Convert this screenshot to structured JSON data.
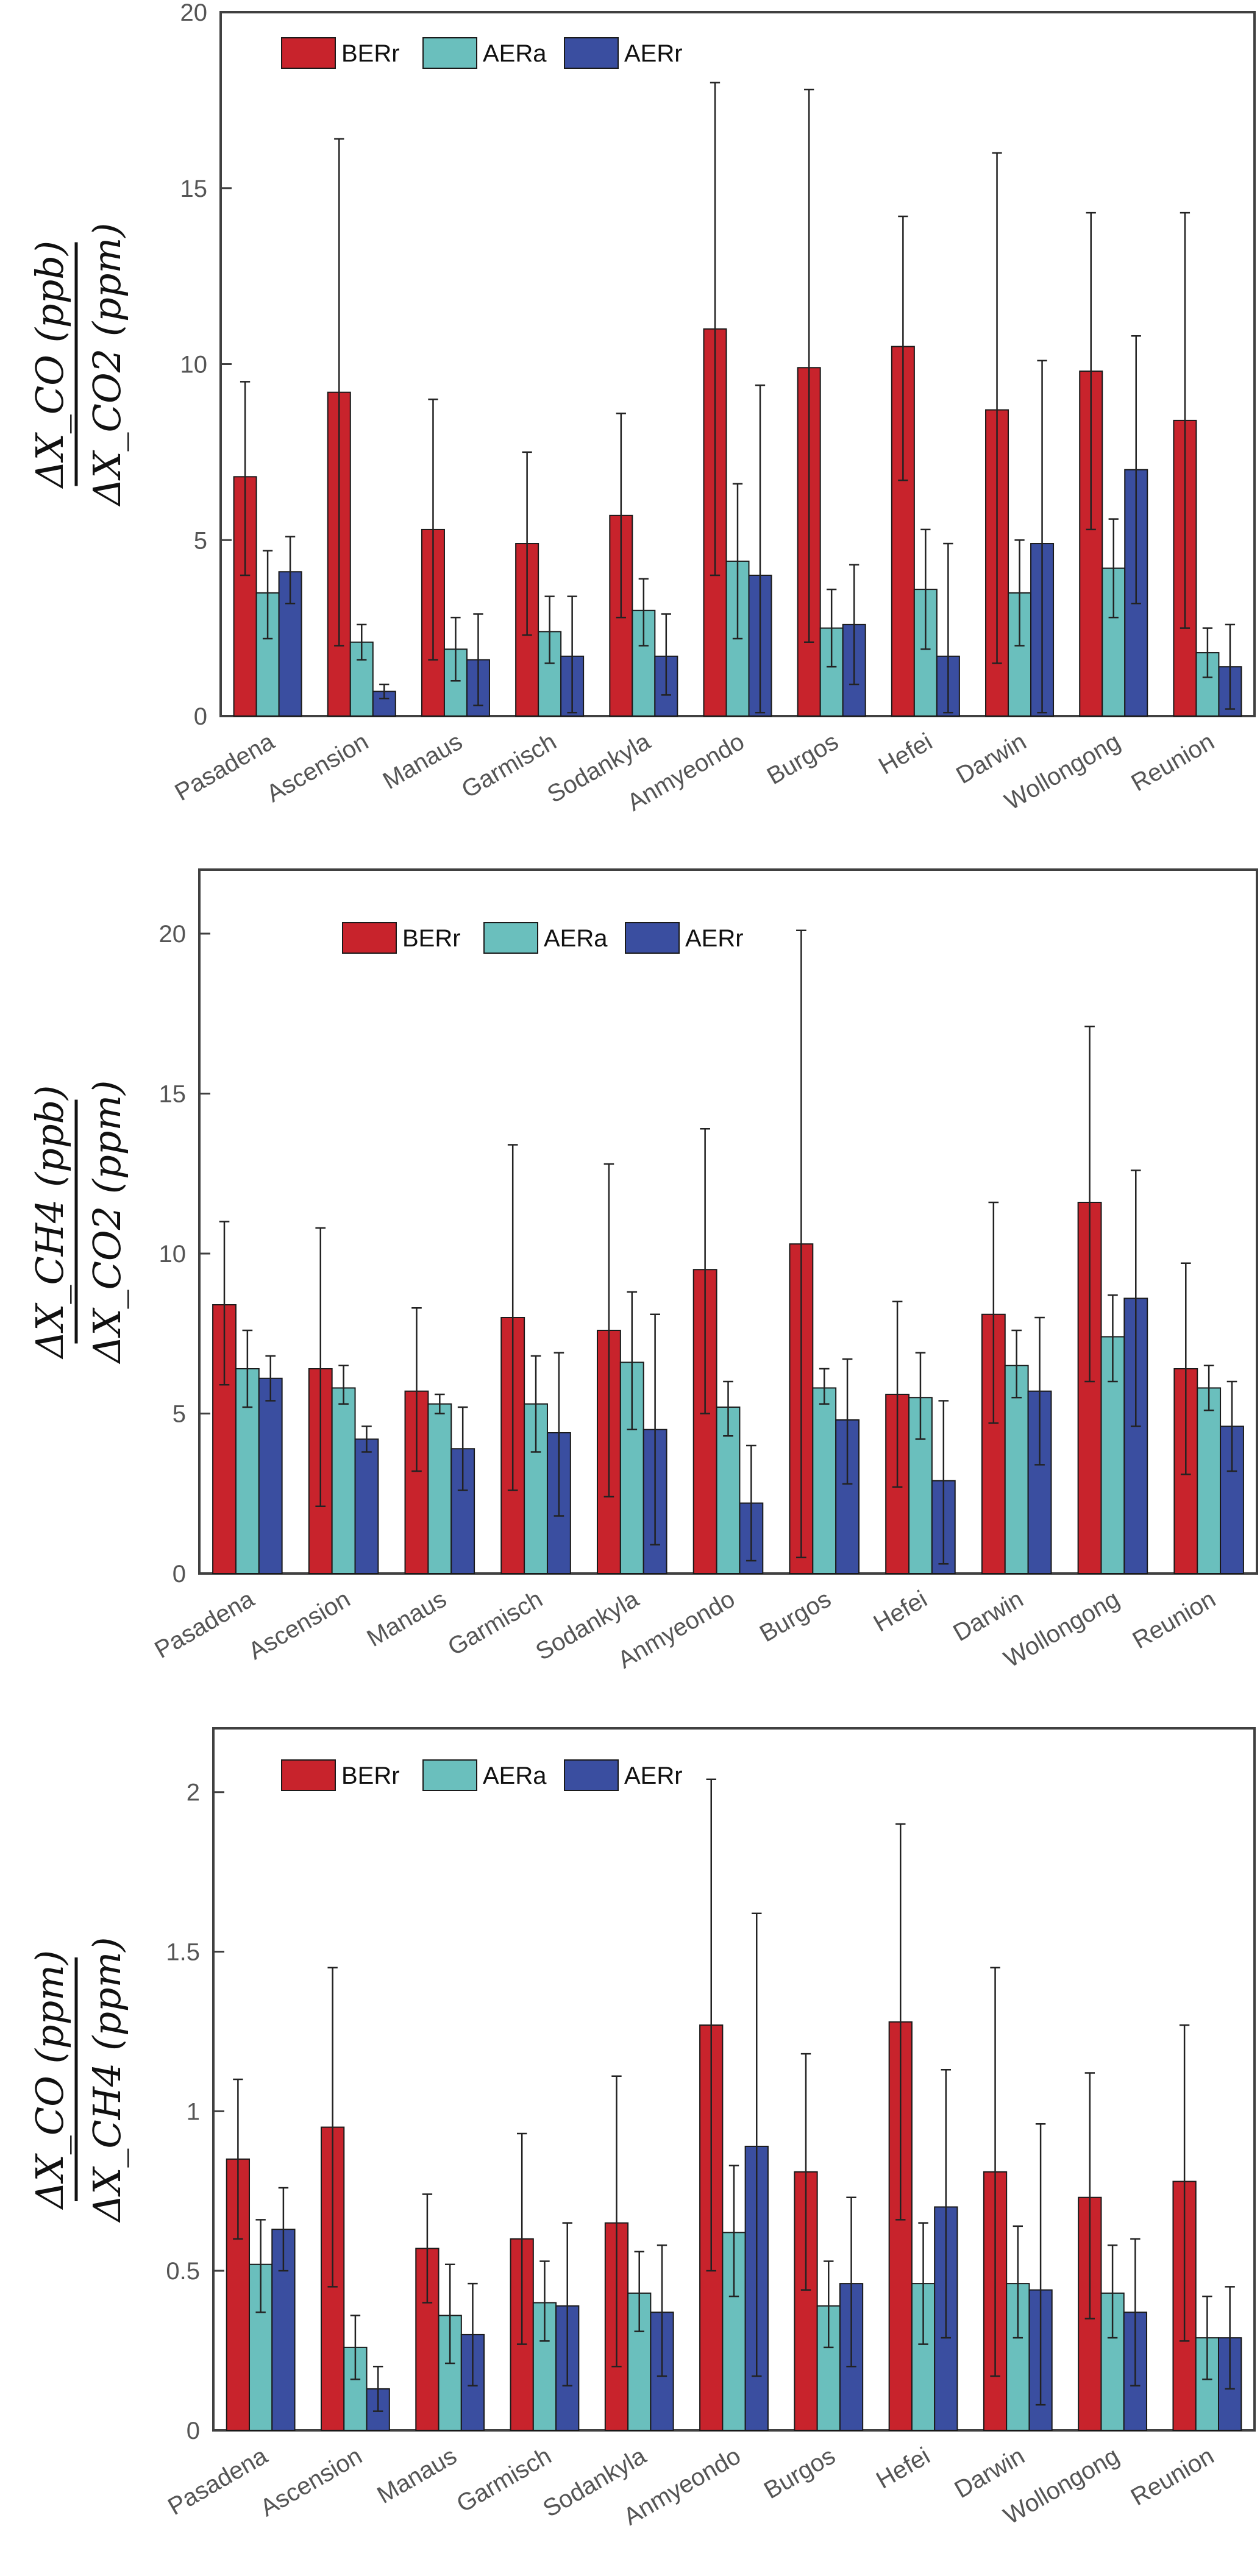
{
  "legend": {
    "berr": "BERr",
    "aera": "AERa",
    "aerr": "AERr"
  },
  "colors": {
    "berr": "#c8232c",
    "aera": "#6abfbd",
    "aerr": "#3a4ea0",
    "axis": "#404040",
    "tick_text": "#555555",
    "error": "#222222"
  },
  "chart_data": [
    {
      "type": "bar",
      "ylabel_parts": {
        "numerator": "ΔX_CO (ppb)",
        "denominator": "ΔX_CO2 (ppm)"
      },
      "ylim": [
        0,
        20
      ],
      "yticks": [
        0,
        5,
        10,
        15,
        20
      ],
      "ytick_labels": [
        "0",
        "5",
        "10",
        "15",
        "20"
      ],
      "categories": [
        "Pasadena",
        "Ascension",
        "Manaus",
        "Garmisch",
        "Sodankyla",
        "Anmyeondo",
        "Burgos",
        "Hefei",
        "Darwin",
        "Wollongong",
        "Reunion"
      ],
      "series": [
        {
          "name": "BERr",
          "values": [
            6.8,
            9.2,
            5.3,
            4.9,
            5.7,
            11.0,
            9.9,
            10.5,
            8.7,
            9.8,
            8.4
          ],
          "err_low": [
            4.0,
            2.0,
            1.6,
            2.3,
            2.8,
            4.0,
            2.1,
            6.7,
            1.5,
            5.3,
            2.5
          ],
          "err_high": [
            9.5,
            16.4,
            9.0,
            7.5,
            8.6,
            18.0,
            17.8,
            14.2,
            16.0,
            14.3,
            14.3
          ]
        },
        {
          "name": "AERa",
          "values": [
            3.5,
            2.1,
            1.9,
            2.4,
            3.0,
            4.4,
            2.5,
            3.6,
            3.5,
            4.2,
            1.8
          ],
          "err_low": [
            2.2,
            1.6,
            1.0,
            1.5,
            2.0,
            2.2,
            1.4,
            1.9,
            2.0,
            2.8,
            1.1
          ],
          "err_high": [
            4.7,
            2.6,
            2.8,
            3.4,
            3.9,
            6.6,
            3.6,
            5.3,
            5.0,
            5.6,
            2.5
          ]
        },
        {
          "name": "AERr",
          "values": [
            4.1,
            0.7,
            1.6,
            1.7,
            1.7,
            4.0,
            2.6,
            1.7,
            4.9,
            7.0,
            1.4
          ],
          "err_low": [
            3.2,
            0.5,
            0.3,
            0.1,
            0.6,
            0.1,
            0.9,
            0.1,
            0.1,
            3.2,
            0.2
          ],
          "err_high": [
            5.1,
            0.9,
            2.9,
            3.4,
            2.9,
            9.4,
            4.3,
            4.9,
            10.1,
            10.8,
            2.6
          ]
        }
      ]
    },
    {
      "type": "bar",
      "ylabel_parts": {
        "numerator": "ΔX_CH4 (ppb)",
        "denominator": "ΔX_CO2 (ppm)"
      },
      "ylim": [
        0,
        22
      ],
      "yticks": [
        0,
        5,
        10,
        15,
        20
      ],
      "ytick_labels": [
        "0",
        "5",
        "10",
        "15",
        "20"
      ],
      "categories": [
        "Pasadena",
        "Ascension",
        "Manaus",
        "Garmisch",
        "Sodankyla",
        "Anmyeondo",
        "Burgos",
        "Hefei",
        "Darwin",
        "Wollongong",
        "Reunion"
      ],
      "series": [
        {
          "name": "BERr",
          "values": [
            8.4,
            6.4,
            5.7,
            8.0,
            7.6,
            9.5,
            10.3,
            5.6,
            8.1,
            11.6,
            6.4
          ],
          "err_low": [
            5.9,
            2.1,
            3.2,
            2.6,
            2.4,
            5.0,
            0.5,
            2.7,
            4.7,
            6.0,
            3.1
          ],
          "err_high": [
            11.0,
            10.8,
            8.3,
            13.4,
            12.8,
            13.9,
            20.1,
            8.5,
            11.6,
            17.1,
            9.7
          ]
        },
        {
          "name": "AERa",
          "values": [
            6.4,
            5.8,
            5.3,
            5.3,
            6.6,
            5.2,
            5.8,
            5.5,
            6.5,
            7.4,
            5.8
          ],
          "err_low": [
            5.2,
            5.3,
            5.0,
            3.8,
            4.5,
            4.3,
            5.3,
            4.2,
            5.5,
            6.0,
            5.1
          ],
          "err_high": [
            7.6,
            6.5,
            5.6,
            6.8,
            8.8,
            6.0,
            6.4,
            6.9,
            7.6,
            8.7,
            6.5
          ]
        },
        {
          "name": "AERr",
          "values": [
            6.1,
            4.2,
            3.9,
            4.4,
            4.5,
            2.2,
            4.8,
            2.9,
            5.7,
            8.6,
            4.6
          ],
          "err_low": [
            5.4,
            3.8,
            2.6,
            1.8,
            0.9,
            0.4,
            2.8,
            0.3,
            3.4,
            4.6,
            3.2
          ],
          "err_high": [
            6.8,
            4.6,
            5.2,
            6.9,
            8.1,
            4.0,
            6.7,
            5.4,
            8.0,
            12.6,
            6.0
          ]
        }
      ]
    },
    {
      "type": "bar",
      "ylabel_parts": {
        "numerator": "ΔX_CO (ppm)",
        "denominator": "ΔX_CH4 (ppm)"
      },
      "ylim": [
        0,
        2.2
      ],
      "yticks": [
        0,
        0.5,
        1,
        1.5,
        2
      ],
      "ytick_labels": [
        "0",
        "0.5",
        "1",
        "1.5",
        "2"
      ],
      "categories": [
        "Pasadena",
        "Ascension",
        "Manaus",
        "Garmisch",
        "Sodankyla",
        "Anmyeondo",
        "Burgos",
        "Hefei",
        "Darwin",
        "Wollongong",
        "Reunion"
      ],
      "series": [
        {
          "name": "BERr",
          "values": [
            0.85,
            0.95,
            0.57,
            0.6,
            0.65,
            1.27,
            0.81,
            1.28,
            0.81,
            0.73,
            0.78
          ],
          "err_low": [
            0.6,
            0.45,
            0.4,
            0.27,
            0.2,
            0.5,
            0.44,
            0.66,
            0.17,
            0.35,
            0.28
          ],
          "err_high": [
            1.1,
            1.45,
            0.74,
            0.93,
            1.11,
            2.04,
            1.18,
            1.9,
            1.45,
            1.12,
            1.27
          ]
        },
        {
          "name": "AERa",
          "values": [
            0.52,
            0.26,
            0.36,
            0.4,
            0.43,
            0.62,
            0.39,
            0.46,
            0.46,
            0.43,
            0.29
          ],
          "err_low": [
            0.37,
            0.16,
            0.21,
            0.28,
            0.31,
            0.42,
            0.26,
            0.27,
            0.29,
            0.29,
            0.16
          ],
          "err_high": [
            0.66,
            0.36,
            0.52,
            0.53,
            0.56,
            0.83,
            0.53,
            0.65,
            0.64,
            0.58,
            0.42
          ]
        },
        {
          "name": "AERr",
          "values": [
            0.63,
            0.13,
            0.3,
            0.39,
            0.37,
            0.89,
            0.46,
            0.7,
            0.44,
            0.37,
            0.29
          ],
          "err_low": [
            0.5,
            0.06,
            0.14,
            0.14,
            0.17,
            0.17,
            0.2,
            0.29,
            0.08,
            0.14,
            0.13
          ],
          "err_high": [
            0.76,
            0.2,
            0.46,
            0.65,
            0.58,
            1.62,
            0.73,
            1.13,
            0.96,
            0.6,
            0.45
          ]
        }
      ]
    }
  ]
}
